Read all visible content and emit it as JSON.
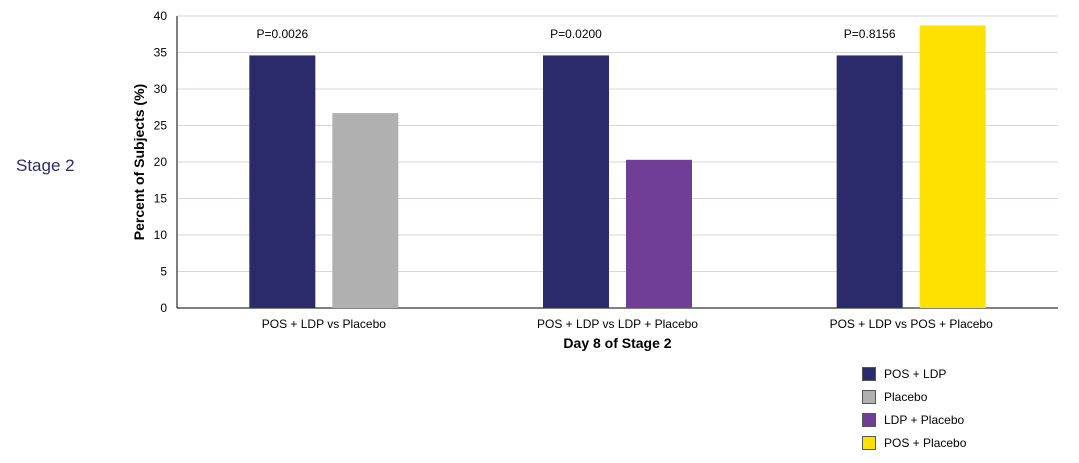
{
  "stage_label": "Stage 2",
  "chart_data": {
    "type": "bar",
    "xlabel": "Day 8 of Stage 2",
    "ylabel": "Percent of Subjects (%)",
    "ylim": [
      0,
      40
    ],
    "yticks": [
      0,
      5,
      10,
      15,
      20,
      25,
      30,
      35,
      40
    ],
    "grid": true,
    "legend_position": "bottom-right",
    "groups": [
      {
        "category": "POS + LDP vs Placebo",
        "p_value": "P=0.0026",
        "bars": [
          {
            "series": "POS + LDP",
            "value": 34.6
          },
          {
            "series": "Placebo",
            "value": 26.7
          }
        ]
      },
      {
        "category": "POS + LDP vs LDP + Placebo",
        "p_value": "P=0.0200",
        "bars": [
          {
            "series": "POS + LDP",
            "value": 34.6
          },
          {
            "series": "LDP + Placebo",
            "value": 20.3
          }
        ]
      },
      {
        "category": "POS + LDP vs POS + Placebo",
        "p_value": "P=0.8156",
        "bars": [
          {
            "series": "POS + LDP",
            "value": 34.6
          },
          {
            "series": "POS + Placebo",
            "value": 38.7
          }
        ]
      }
    ],
    "legend": [
      {
        "name": "POS + LDP",
        "color": "#2b2a6b"
      },
      {
        "name": "Placebo",
        "color": "#b0b0b0"
      },
      {
        "name": "LDP + Placebo",
        "color": "#703e96"
      },
      {
        "name": "POS + Placebo",
        "color": "#ffe100"
      }
    ]
  }
}
